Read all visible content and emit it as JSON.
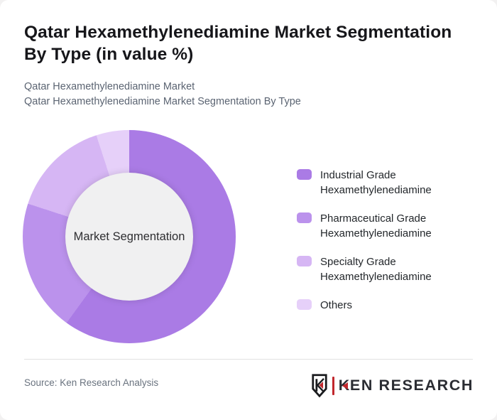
{
  "page": {
    "title_line1": "Qatar Hexamethylenediamine Market Segmentation",
    "title_line2": "By Type (in value %)",
    "subtitle_line1": "Qatar Hexamethylenediamine Market",
    "subtitle_line2": "Qatar Hexamethylenediamine Market Segmentation By Type",
    "source": "Source: Ken Research Analysis"
  },
  "logo": {
    "brand_first_letter": "K",
    "brand_rest_text": "EN RESEARCH",
    "red": "#c1272d",
    "dark": "#2b2d33"
  },
  "chart_data": {
    "type": "pie",
    "donut": true,
    "title": "Qatar Hexamethylenediamine Market Segmentation By Type (in value %)",
    "center_label": "Market Segmentation",
    "unit": "% of market value",
    "start_angle_deg": 0,
    "direction": "clockwise",
    "labels": [
      "Industrial Grade Hexamethylenediamine",
      "Pharmaceutical Grade Hexamethylenediamine",
      "Specialty Grade Hexamethylenediamine",
      "Others"
    ],
    "values": [
      60,
      20,
      15,
      5
    ],
    "colors": [
      "#aa7be5",
      "#bb92ec",
      "#d6b6f4",
      "#e6d0f9"
    ],
    "inner_circle_color": "#f0f0f1",
    "legend_position": "right",
    "legend_text_color": "#23272b"
  }
}
